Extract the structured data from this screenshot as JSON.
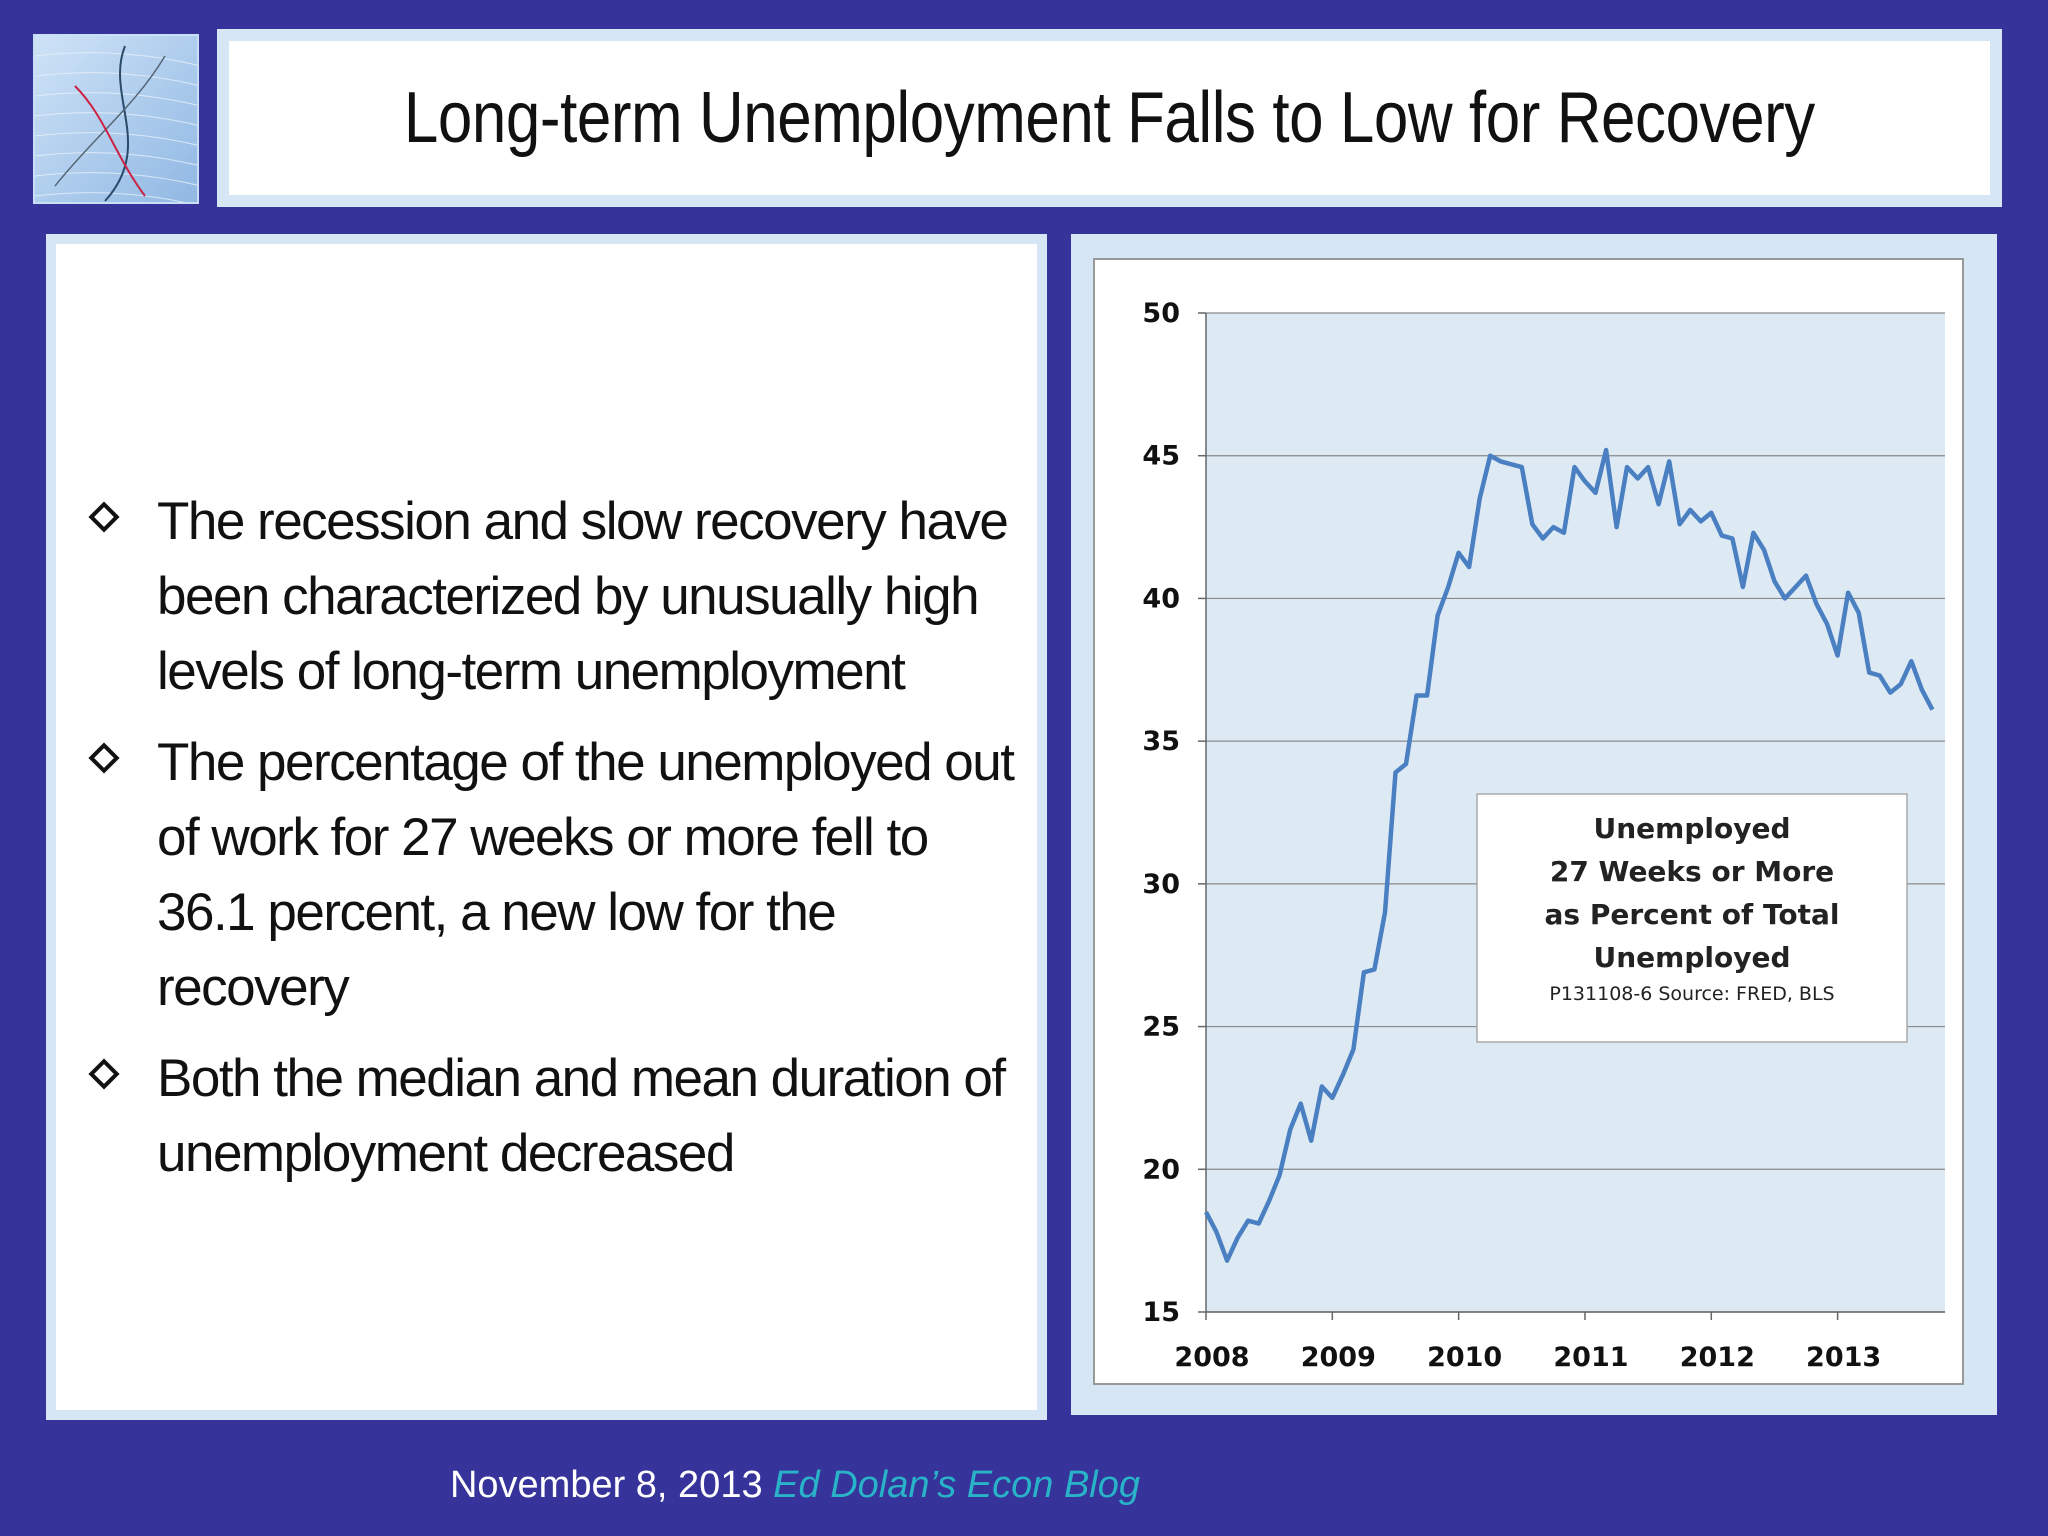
{
  "slide": {
    "title": "Long-term Unemployment Falls to Low for Recovery",
    "bullets": [
      "The recession and slow recovery have been characterized by unusually high levels of long-term unemployment",
      "The percentage of the unemployed out of work for 27 weeks or more fell to 36.1 percent, a new low for the recovery",
      "Both the median and mean duration of unemployment decreased"
    ],
    "footer_date": "November 8, 2013",
    "footer_blog": "Ed Dolan’s Econ Blog"
  },
  "colors": {
    "background": "#36339a",
    "plot_bg": "#ddeaf4",
    "series": "#4a7fc1",
    "footer_blog": "#29b3c8"
  },
  "chart_data": {
    "type": "line",
    "legend_lines": [
      "Unemployed",
      "27 Weeks or More",
      "as Percent of Total",
      "Unemployed"
    ],
    "source": "P131108-6 Source: FRED, BLS",
    "legend_position": "center-right",
    "grid": true,
    "ylim": [
      15,
      50
    ],
    "yticks": [
      15,
      20,
      25,
      30,
      35,
      40,
      45,
      50
    ],
    "xlim": [
      2008.0,
      2013.85
    ],
    "xticks": [
      2008,
      2009,
      2010,
      2011,
      2012,
      2013
    ],
    "series": [
      {
        "x": [
          2008.0,
          2008.083,
          2008.167,
          2008.25,
          2008.333,
          2008.417,
          2008.5,
          2008.583,
          2008.667,
          2008.75,
          2008.833,
          2008.917,
          2009.0,
          2009.083,
          2009.167,
          2009.25,
          2009.333,
          2009.417,
          2009.5,
          2009.583,
          2009.667,
          2009.75,
          2009.833,
          2009.917,
          2010.0,
          2010.083,
          2010.167,
          2010.25,
          2010.333,
          2010.417,
          2010.5,
          2010.583,
          2010.667,
          2010.75,
          2010.833,
          2010.917,
          2011.0,
          2011.083,
          2011.167,
          2011.25,
          2011.333,
          2011.417,
          2011.5,
          2011.583,
          2011.667,
          2011.75,
          2011.833,
          2011.917,
          2012.0,
          2012.083,
          2012.167,
          2012.25,
          2012.333,
          2012.417,
          2012.5,
          2012.583,
          2012.667,
          2012.75,
          2012.833,
          2012.917,
          2013.0,
          2013.083,
          2013.167,
          2013.25,
          2013.333,
          2013.417,
          2013.5,
          2013.583,
          2013.667,
          2013.75
        ],
        "values": [
          18.5,
          17.8,
          16.8,
          17.6,
          18.2,
          18.1,
          18.9,
          19.8,
          21.4,
          22.3,
          21.0,
          22.9,
          22.5,
          23.3,
          24.2,
          26.9,
          27.0,
          29.0,
          33.9,
          34.2,
          36.6,
          36.6,
          39.4,
          40.4,
          41.6,
          41.1,
          43.5,
          45.0,
          44.8,
          44.7,
          44.6,
          42.6,
          42.1,
          42.5,
          42.3,
          44.6,
          44.1,
          43.7,
          45.2,
          42.5,
          44.6,
          44.2,
          44.6,
          43.3,
          44.8,
          42.6,
          43.1,
          42.7,
          43.0,
          42.2,
          42.1,
          40.4,
          42.3,
          41.7,
          40.6,
          40.0,
          40.4,
          40.8,
          39.8,
          39.1,
          38.0,
          40.2,
          39.5,
          37.4,
          37.3,
          36.7,
          37.0,
          37.8,
          36.8,
          36.1
        ]
      }
    ]
  }
}
